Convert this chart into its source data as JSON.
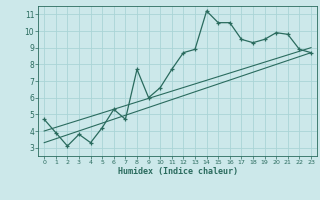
{
  "title": "",
  "xlabel": "Humidex (Indice chaleur)",
  "background_color": "#cce8ea",
  "grid_color": "#aad4d6",
  "line_color": "#2a6b5e",
  "xlim": [
    -0.5,
    23.5
  ],
  "ylim": [
    2.5,
    11.5
  ],
  "xticks": [
    0,
    1,
    2,
    3,
    4,
    5,
    6,
    7,
    8,
    9,
    10,
    11,
    12,
    13,
    14,
    15,
    16,
    17,
    18,
    19,
    20,
    21,
    22,
    23
  ],
  "yticks": [
    3,
    4,
    5,
    6,
    7,
    8,
    9,
    10,
    11
  ],
  "main_x": [
    0,
    1,
    2,
    3,
    4,
    5,
    6,
    7,
    8,
    9,
    10,
    11,
    12,
    13,
    14,
    15,
    16,
    17,
    18,
    19,
    20,
    21,
    22,
    23
  ],
  "main_y": [
    4.7,
    3.9,
    3.1,
    3.8,
    3.3,
    4.2,
    5.3,
    4.7,
    7.7,
    6.0,
    6.6,
    7.7,
    8.7,
    8.9,
    11.2,
    10.5,
    10.5,
    9.5,
    9.3,
    9.5,
    9.9,
    9.8,
    8.9,
    8.7
  ],
  "line1_x": [
    0,
    23
  ],
  "line1_y": [
    3.3,
    8.7
  ],
  "line2_x": [
    0,
    23
  ],
  "line2_y": [
    4.0,
    9.0
  ]
}
